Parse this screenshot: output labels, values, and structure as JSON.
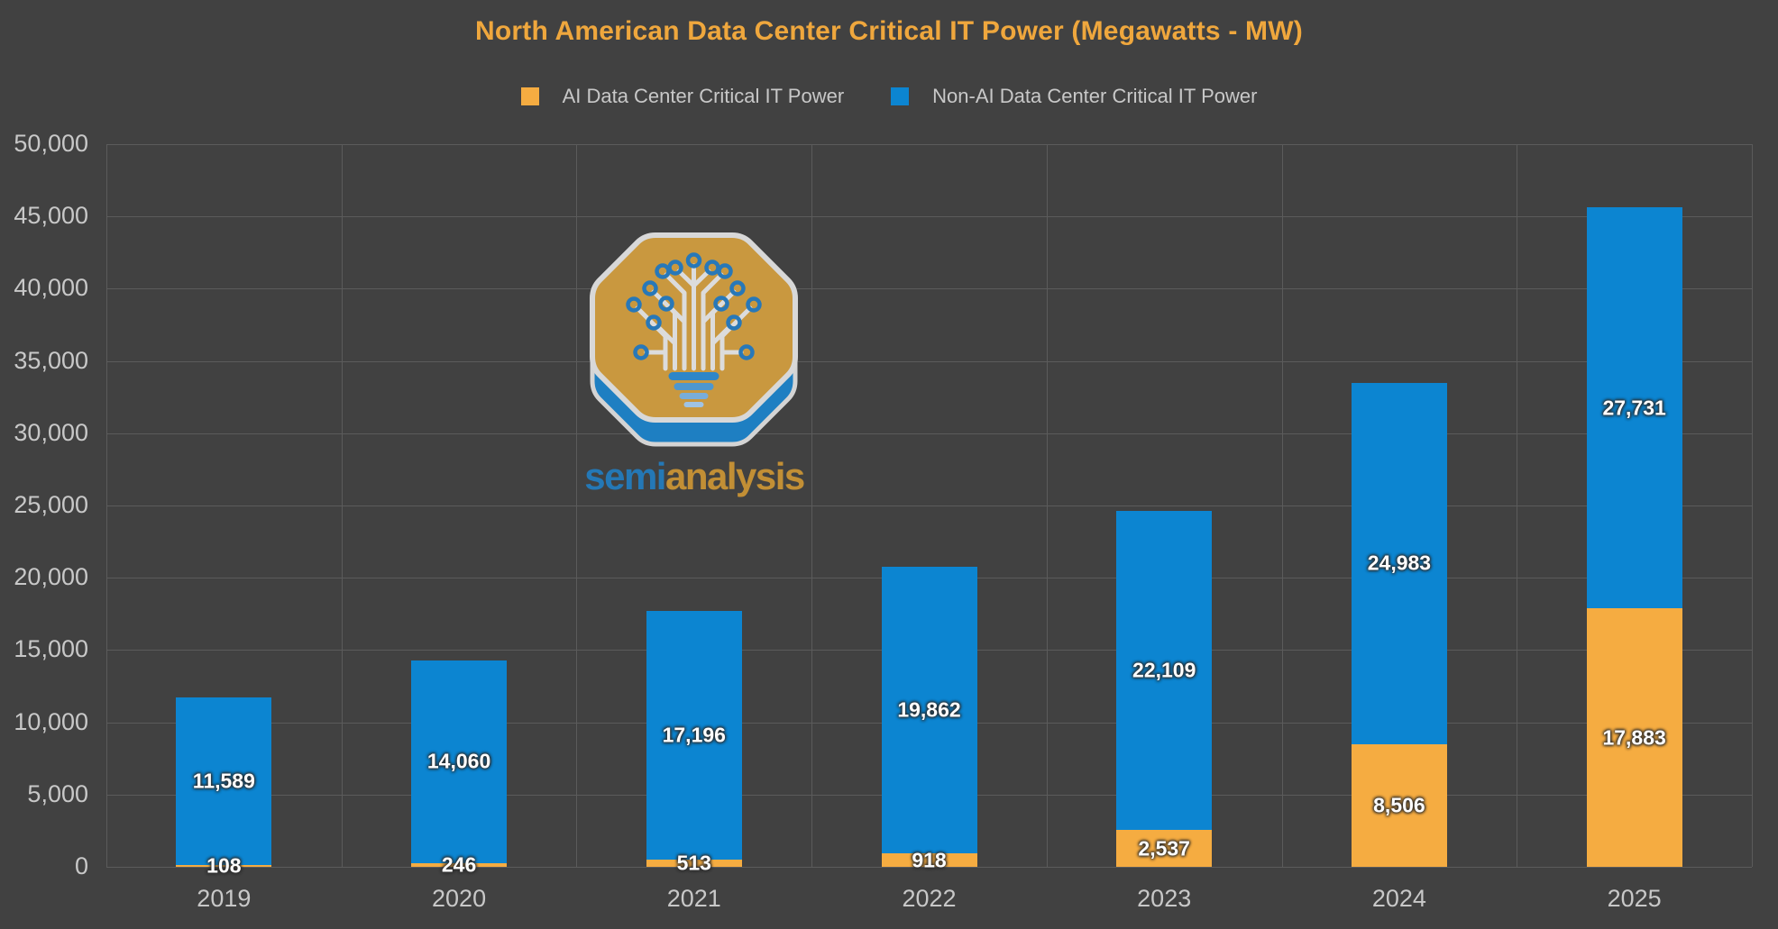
{
  "title": "North American Data Center Critical IT Power (Megawatts - MW)",
  "legend": [
    {
      "id": "ai",
      "label": "AI Data Center Critical IT Power",
      "color": "#F5AC41"
    },
    {
      "id": "non-ai",
      "label": "Non-AI Data Center Critical IT Power",
      "color": "#0C85D1"
    }
  ],
  "watermark": {
    "semi": "semi",
    "analysis": "analysis"
  },
  "colors": {
    "background": "#414141",
    "gridline": "#5B5B5B",
    "axis_text": "#C8C8C8",
    "title_text": "#EFA73D",
    "data_label": "#FFFFFF",
    "ai_series": "#F5AC41",
    "non_ai_series": "#0C85D1",
    "logo_gold": "#C9983F",
    "logo_blue": "#1E7FC2"
  },
  "chart_data": {
    "type": "bar",
    "stacked": true,
    "title": "North American Data Center Critical IT Power (Megawatts - MW)",
    "categories": [
      "2019",
      "2020",
      "2021",
      "2022",
      "2023",
      "2024",
      "2025"
    ],
    "series": [
      {
        "name": "AI Data Center Critical IT Power",
        "color": "#F5AC41",
        "values": [
          108,
          246,
          513,
          918,
          2537,
          8506,
          17883
        ]
      },
      {
        "name": "Non-AI Data Center Critical IT Power",
        "color": "#0C85D1",
        "values": [
          11589,
          14060,
          17196,
          19862,
          22109,
          24983,
          27731
        ]
      }
    ],
    "xlabel": "",
    "ylabel": "",
    "ylim": [
      0,
      50000
    ],
    "ytick_step": 5000,
    "grid": true,
    "legend_position": "top",
    "data_labels_visible": true
  }
}
